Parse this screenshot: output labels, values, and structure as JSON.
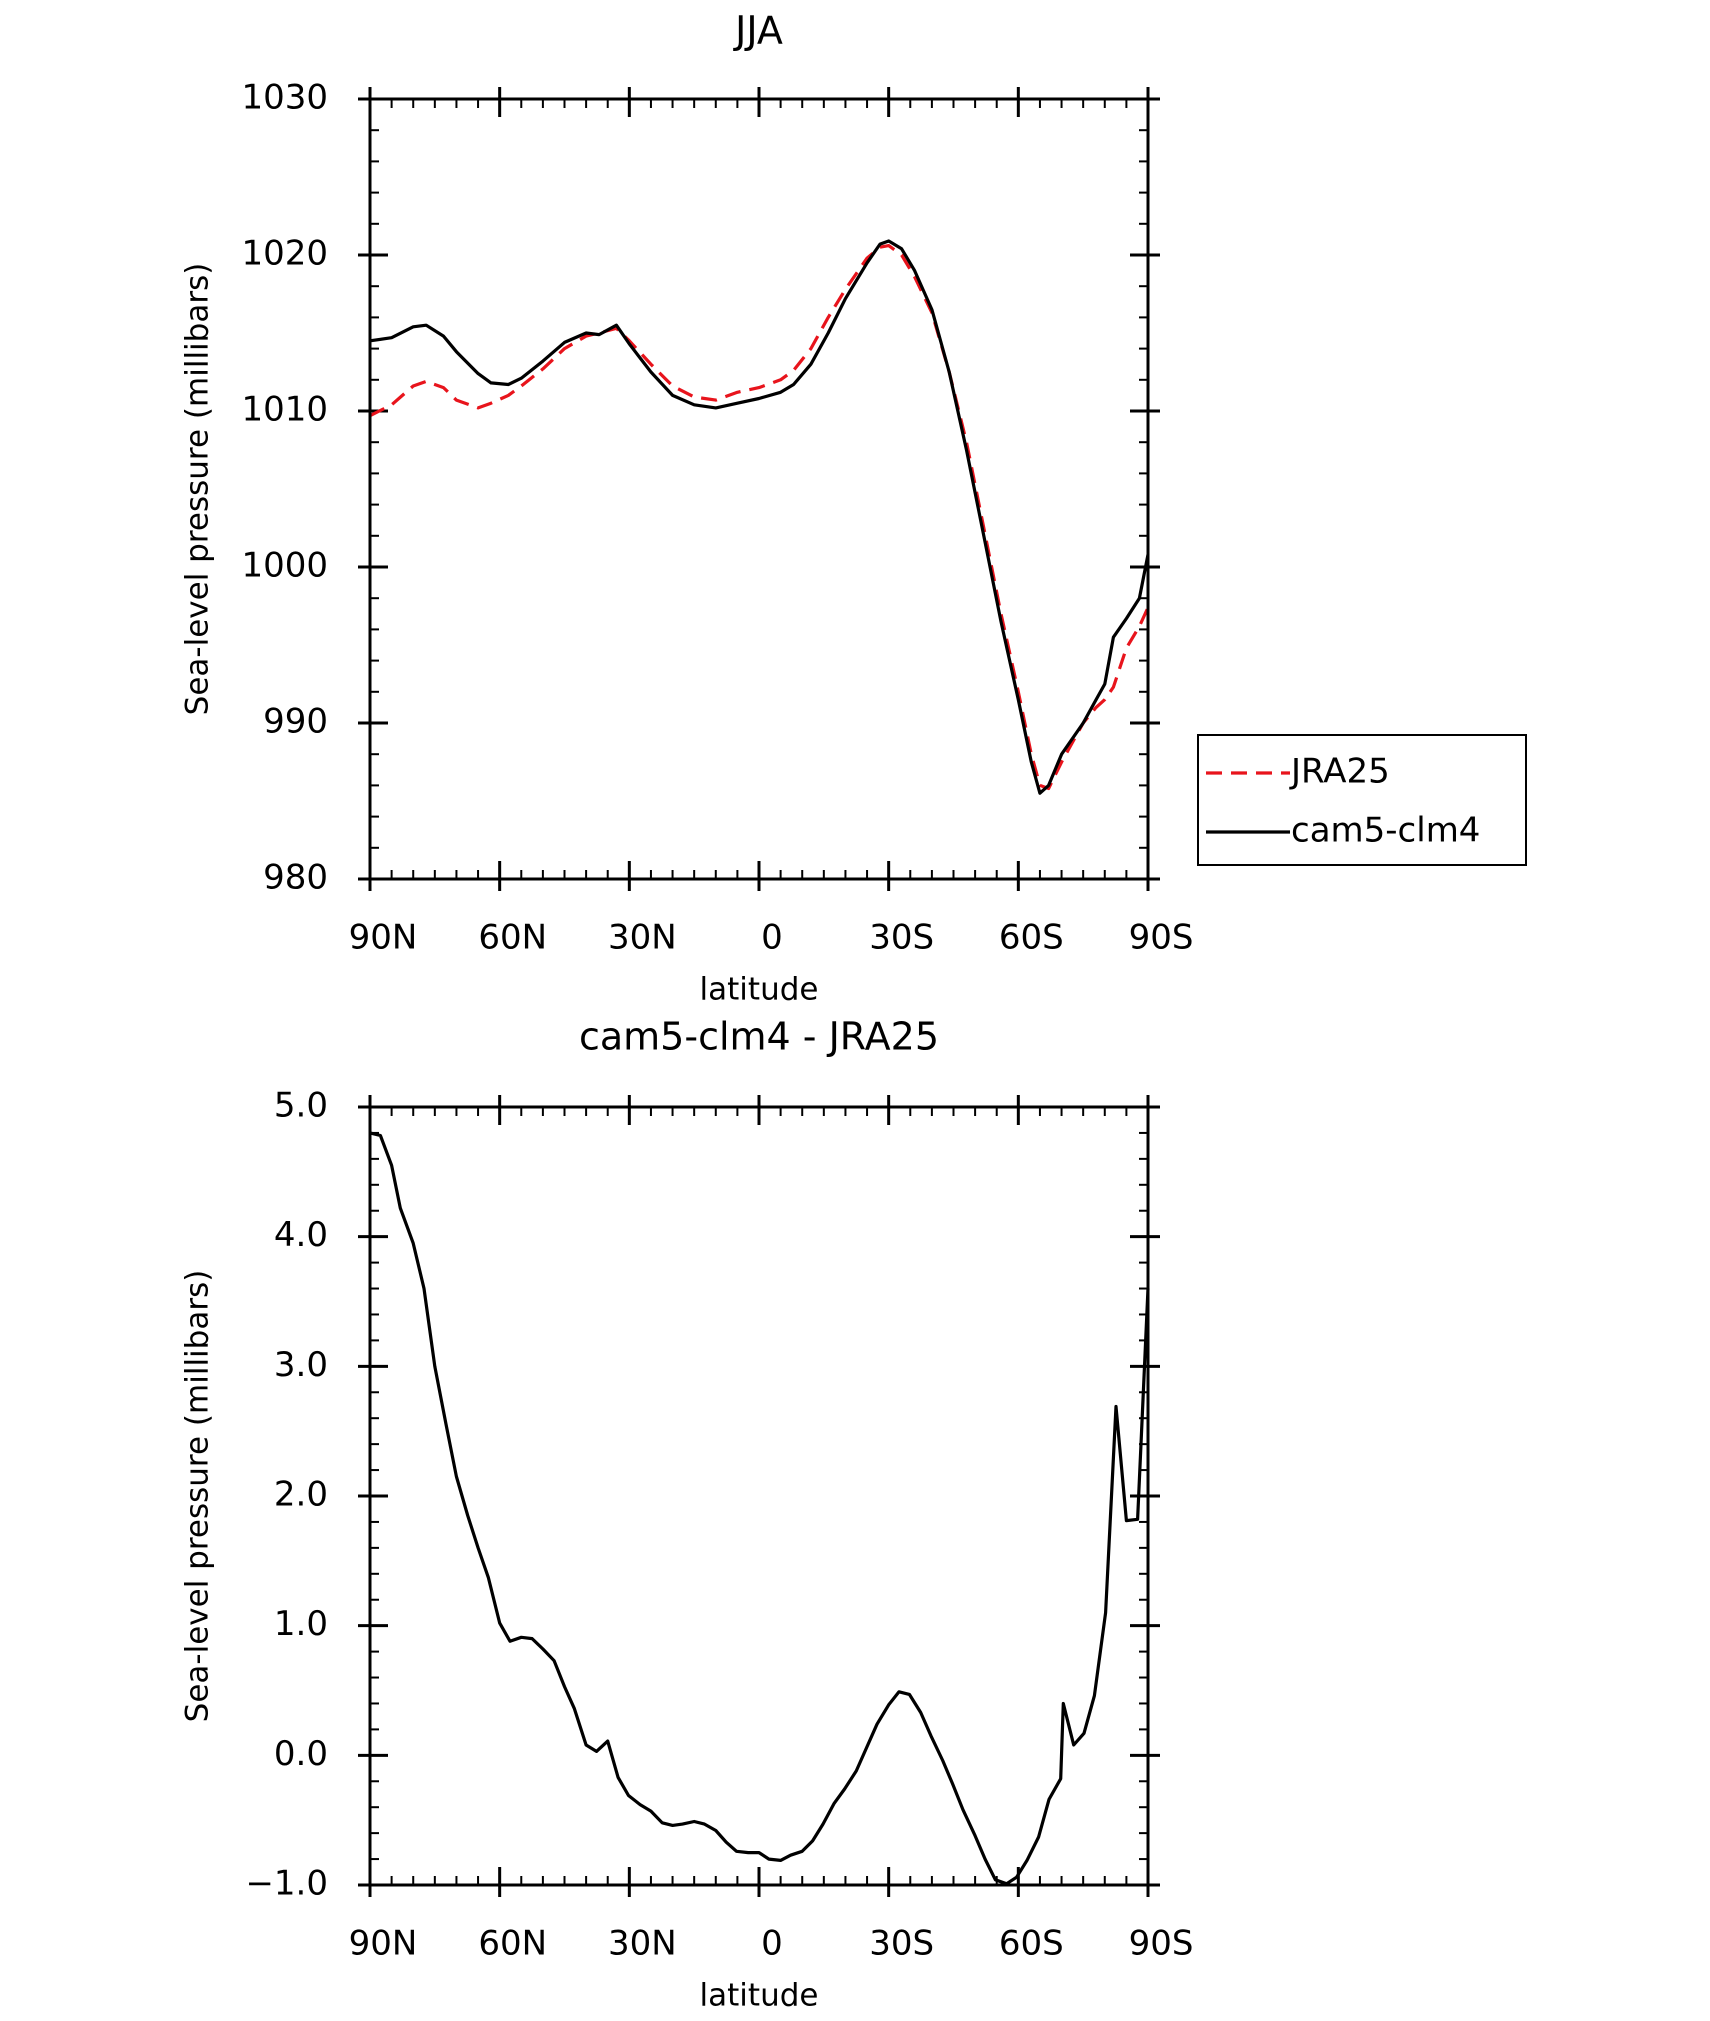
{
  "chart_data": [
    {
      "type": "line",
      "title": "JJA",
      "xlabel": "latitude",
      "ylabel": "Sea-level pressure (millibars)",
      "x": [
        90,
        85,
        80,
        77,
        73,
        70,
        65,
        62,
        58,
        55,
        50,
        45,
        40,
        37,
        33,
        30,
        25,
        20,
        15,
        10,
        5,
        0,
        -5,
        -8,
        -12,
        -16,
        -20,
        -25,
        -28,
        -30,
        -33,
        -36,
        -40,
        -44,
        -48,
        -52,
        -56,
        -60,
        -63,
        -65,
        -67,
        -70,
        -75,
        -78,
        -80,
        -82,
        -85,
        -88,
        -90
      ],
      "series": [
        {
          "name": "JRA25",
          "color": "#e8141c",
          "dash": "dashed",
          "values": [
            1009.7,
            1010.4,
            1011.6,
            1011.9,
            1011.5,
            1010.7,
            1010.2,
            1010.5,
            1011.0,
            1011.6,
            1012.7,
            1014.0,
            1014.8,
            1015.0,
            1015.3,
            1014.5,
            1013.0,
            1011.6,
            1010.9,
            1010.7,
            1011.2,
            1011.5,
            1012.0,
            1012.6,
            1014.0,
            1016.0,
            1017.8,
            1019.8,
            1020.5,
            1020.6,
            1020.0,
            1018.6,
            1016.3,
            1012.5,
            1008.0,
            1002.5,
            997.0,
            992.0,
            988.0,
            986.0,
            985.8,
            987.5,
            990.0,
            991.0,
            991.5,
            992.3,
            994.8,
            996.2,
            997.4
          ]
        },
        {
          "name": "cam5-clm4",
          "color": "#000000",
          "dash": "solid",
          "values": [
            1014.5,
            1014.7,
            1015.4,
            1015.5,
            1014.8,
            1013.8,
            1012.4,
            1011.8,
            1011.7,
            1012.1,
            1013.2,
            1014.4,
            1015.0,
            1014.9,
            1015.5,
            1014.3,
            1012.5,
            1011.0,
            1010.4,
            1010.2,
            1010.5,
            1010.8,
            1011.2,
            1011.7,
            1013.0,
            1015.0,
            1017.2,
            1019.5,
            1020.7,
            1020.9,
            1020.4,
            1019.0,
            1016.5,
            1012.5,
            1007.5,
            1002.0,
            996.5,
            991.5,
            987.5,
            985.5,
            986.0,
            988.0,
            990.0,
            991.5,
            992.5,
            995.5,
            996.7,
            998.0,
            1000.8
          ]
        }
      ],
      "xlim": [
        90,
        -90
      ],
      "xticks": [
        {
          "value": 90,
          "label": "90N"
        },
        {
          "value": 60,
          "label": "60N"
        },
        {
          "value": 30,
          "label": "30N"
        },
        0,
        {
          "value": -30,
          "label": "30S"
        },
        {
          "value": -60,
          "label": "60S"
        },
        {
          "value": -90,
          "label": "90S"
        }
      ],
      "ylim": [
        980,
        1030
      ],
      "yticks": [
        980,
        990,
        1000,
        1010,
        1020,
        1030
      ],
      "legend": "right"
    },
    {
      "type": "line",
      "title": "cam5-clm4 - JRA25",
      "xlabel": "latitude",
      "ylabel": "Sea-level pressure (millibars)",
      "x": [
        90,
        87.6,
        85,
        83,
        80,
        77.5,
        75,
        72.4,
        70,
        67.4,
        65,
        62.6,
        60,
        57.6,
        55,
        52.5,
        50,
        47.4,
        45,
        42.7,
        40,
        37.6,
        35,
        32.6,
        30.2,
        27.5,
        25,
        22.4,
        20,
        17.7,
        15,
        12.6,
        10,
        7.6,
        5.2,
        2.5,
        0,
        -2.3,
        -5,
        -7.3,
        -10,
        -12.4,
        -14.8,
        -17.4,
        -19.8,
        -22.5,
        -24.9,
        -27.3,
        -30,
        -32.4,
        -34.8,
        -37.4,
        -39.8,
        -42.5,
        -44.8,
        -47.2,
        -50,
        -52.3,
        -54.7,
        -57.3,
        -59.6,
        -62,
        -64.7,
        -67.1,
        -69.8,
        -70.4,
        -72.8,
        -75.2,
        -77.6,
        -80.2,
        -82.6,
        -85,
        -87.6,
        -90
      ],
      "series": [
        {
          "name": "cam5-clm4 - JRA25",
          "color": "#000000",
          "dash": "solid",
          "values": [
            4.8,
            4.78,
            4.55,
            4.22,
            3.95,
            3.6,
            3.0,
            2.55,
            2.15,
            1.85,
            1.6,
            1.37,
            1.02,
            0.88,
            0.91,
            0.9,
            0.82,
            0.73,
            0.53,
            0.36,
            0.08,
            0.03,
            0.11,
            -0.17,
            -0.31,
            -0.38,
            -0.43,
            -0.52,
            -0.54,
            -0.53,
            -0.51,
            -0.53,
            -0.58,
            -0.67,
            -0.74,
            -0.75,
            -0.75,
            -0.8,
            -0.81,
            -0.77,
            -0.74,
            -0.66,
            -0.53,
            -0.37,
            -0.26,
            -0.12,
            0.06,
            0.24,
            0.39,
            0.49,
            0.47,
            0.33,
            0.15,
            -0.04,
            -0.22,
            -0.42,
            -0.62,
            -0.8,
            -0.96,
            -0.99,
            -0.94,
            -0.81,
            -0.63,
            -0.34,
            -0.18,
            0.4,
            0.08,
            0.17,
            0.46,
            1.1,
            2.69,
            1.81,
            1.82,
            3.6
          ]
        }
      ],
      "xlim": [
        90,
        -90
      ],
      "xticks": [
        {
          "value": 90,
          "label": "90N"
        },
        {
          "value": 60,
          "label": "60N"
        },
        {
          "value": 30,
          "label": "30N"
        },
        0,
        {
          "value": -30,
          "label": "30S"
        },
        {
          "value": -60,
          "label": "60S"
        },
        {
          "value": -90,
          "label": "90S"
        }
      ],
      "ylim": [
        -1,
        5
      ],
      "yticks": [
        {
          "value": -1,
          "label": "−1.0"
        },
        {
          "value": 0,
          "label": "0.0"
        },
        {
          "value": 1,
          "label": "1.0"
        },
        {
          "value": 2,
          "label": "2.0"
        },
        {
          "value": 3,
          "label": "3.0"
        },
        {
          "value": 4,
          "label": "4.0"
        },
        {
          "value": 5,
          "label": "5.0"
        }
      ]
    }
  ]
}
